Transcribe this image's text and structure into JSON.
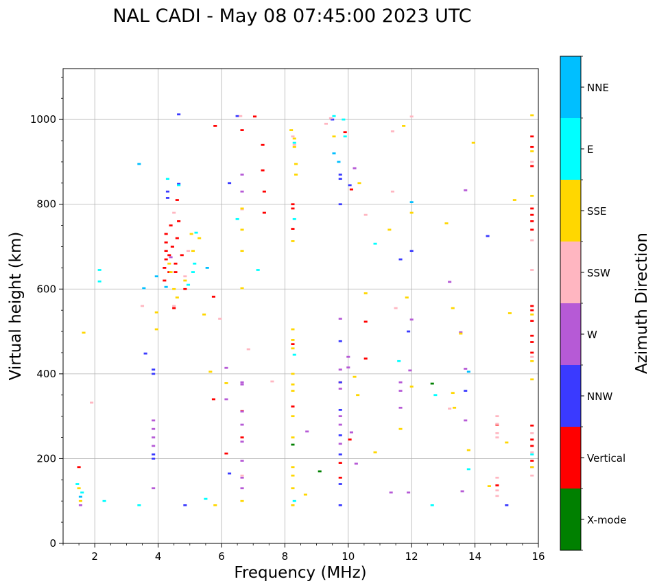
{
  "chart_data": {
    "type": "scatter",
    "title": "NAL CADI - May 08 07:45:00 2023 UTC",
    "xlabel": "Frequency (MHz)",
    "ylabel": "Virtual height (km)",
    "xlim": [
      1,
      16
    ],
    "ylim": [
      0,
      1120
    ],
    "xticks": [
      2,
      4,
      6,
      8,
      10,
      12,
      14,
      16
    ],
    "yticks": [
      0,
      200,
      400,
      600,
      800,
      1000
    ],
    "xtick_labels": [
      "2",
      "4",
      "6",
      "8",
      "10",
      "12",
      "14",
      "16"
    ],
    "ytick_labels": [
      "0",
      "200",
      "400",
      "600",
      "800",
      "1000"
    ],
    "grid": true,
    "colorbar": {
      "label": "Azimuth Direction",
      "categories": [
        {
          "name": "X-mode",
          "color": "#008000"
        },
        {
          "name": "Vertical",
          "color": "#ff0000"
        },
        {
          "name": "NNW",
          "color": "#3a3aff"
        },
        {
          "name": "W",
          "color": "#b65ad6"
        },
        {
          "name": "SSW",
          "color": "#ffb6c1"
        },
        {
          "name": "SSE",
          "color": "#ffd700"
        },
        {
          "name": "E",
          "color": "#00ffff"
        },
        {
          "name": "NNE",
          "color": "#00bfff"
        }
      ]
    },
    "series": [
      {
        "name": "X-mode",
        "points": [
          [
            9.1,
            170
          ],
          [
            12.65,
            377
          ],
          [
            8.25,
            233
          ]
        ]
      },
      {
        "name": "Vertical",
        "points": [
          [
            1.5,
            180
          ],
          [
            4.2,
            620
          ],
          [
            4.2,
            650
          ],
          [
            4.25,
            670
          ],
          [
            4.25,
            690
          ],
          [
            4.25,
            710
          ],
          [
            4.25,
            730
          ],
          [
            4.35,
            640
          ],
          [
            4.35,
            680
          ],
          [
            4.45,
            700
          ],
          [
            4.4,
            750
          ],
          [
            4.5,
            555
          ],
          [
            4.55,
            640
          ],
          [
            4.55,
            660
          ],
          [
            4.6,
            720
          ],
          [
            4.6,
            810
          ],
          [
            4.65,
            760
          ],
          [
            4.75,
            680
          ],
          [
            4.85,
            600
          ],
          [
            5.75,
            582
          ],
          [
            5.75,
            340
          ],
          [
            5.8,
            985
          ],
          [
            6.15,
            212
          ],
          [
            6.65,
            975
          ],
          [
            6.65,
            312
          ],
          [
            6.65,
            250
          ],
          [
            7.05,
            1007
          ],
          [
            7.3,
            940
          ],
          [
            7.3,
            880
          ],
          [
            7.35,
            830
          ],
          [
            7.35,
            780
          ],
          [
            8.25,
            800
          ],
          [
            8.25,
            790
          ],
          [
            8.25,
            742
          ],
          [
            8.25,
            470
          ],
          [
            8.25,
            323
          ],
          [
            9.75,
            380
          ],
          [
            9.75,
            190
          ],
          [
            9.75,
            155
          ],
          [
            9.9,
            970
          ],
          [
            10.05,
            245
          ],
          [
            10.1,
            835
          ],
          [
            10.55,
            523
          ],
          [
            10.55,
            436
          ],
          [
            14.7,
            280
          ],
          [
            14.7,
            137
          ],
          [
            15.8,
            960
          ],
          [
            15.8,
            935
          ],
          [
            15.8,
            890
          ],
          [
            15.8,
            790
          ],
          [
            15.8,
            775
          ],
          [
            15.8,
            760
          ],
          [
            15.8,
            740
          ],
          [
            15.8,
            560
          ],
          [
            15.8,
            550
          ],
          [
            15.8,
            525
          ],
          [
            15.8,
            490
          ],
          [
            15.8,
            475
          ],
          [
            15.8,
            450
          ],
          [
            15.8,
            278
          ],
          [
            15.8,
            245
          ],
          [
            15.8,
            230
          ],
          [
            15.8,
            195
          ]
        ]
      },
      {
        "name": "NNW",
        "points": [
          [
            3.85,
            410
          ],
          [
            3.85,
            400
          ],
          [
            3.85,
            200
          ],
          [
            3.85,
            210
          ],
          [
            3.6,
            448
          ],
          [
            4.3,
            830
          ],
          [
            4.3,
            815
          ],
          [
            4.65,
            1012
          ],
          [
            4.65,
            848
          ],
          [
            4.85,
            90
          ],
          [
            6.25,
            850
          ],
          [
            6.25,
            165
          ],
          [
            6.5,
            1008
          ],
          [
            9.5,
            1000
          ],
          [
            9.75,
            870
          ],
          [
            9.75,
            860
          ],
          [
            9.75,
            800
          ],
          [
            9.75,
            477
          ],
          [
            9.75,
            380
          ],
          [
            9.75,
            315
          ],
          [
            9.75,
            255
          ],
          [
            9.75,
            210
          ],
          [
            9.75,
            140
          ],
          [
            9.75,
            90
          ],
          [
            10.05,
            845
          ],
          [
            11.65,
            670
          ],
          [
            11.9,
            500
          ],
          [
            12,
            690
          ],
          [
            13.7,
            360
          ],
          [
            14.4,
            725
          ],
          [
            15.0,
            90
          ]
        ]
      },
      {
        "name": "W",
        "points": [
          [
            1.55,
            90
          ],
          [
            3.85,
            290
          ],
          [
            3.85,
            270
          ],
          [
            3.85,
            250
          ],
          [
            3.85,
            230
          ],
          [
            3.85,
            130
          ],
          [
            4.4,
            675
          ],
          [
            6.15,
            414
          ],
          [
            6.15,
            340
          ],
          [
            6.65,
            870
          ],
          [
            6.65,
            830
          ],
          [
            6.65,
            380
          ],
          [
            6.65,
            375
          ],
          [
            6.65,
            311
          ],
          [
            6.65,
            280
          ],
          [
            6.65,
            240
          ],
          [
            6.65,
            195
          ],
          [
            6.65,
            155
          ],
          [
            6.65,
            130
          ],
          [
            8.7,
            264
          ],
          [
            9.75,
            530
          ],
          [
            9.75,
            410
          ],
          [
            9.75,
            365
          ],
          [
            9.75,
            300
          ],
          [
            9.75,
            280
          ],
          [
            9.75,
            235
          ],
          [
            10.0,
            440
          ],
          [
            10.0,
            415
          ],
          [
            10.1,
            262
          ],
          [
            10.2,
            885
          ],
          [
            10.25,
            188
          ],
          [
            11.35,
            120
          ],
          [
            11.65,
            380
          ],
          [
            11.65,
            360
          ],
          [
            11.65,
            320
          ],
          [
            11.9,
            120
          ],
          [
            11.95,
            408
          ],
          [
            12.0,
            528
          ],
          [
            13.2,
            617
          ],
          [
            13.55,
            498
          ],
          [
            13.7,
            833
          ],
          [
            13.7,
            412
          ],
          [
            13.7,
            290
          ],
          [
            13.6,
            123
          ],
          [
            15.8,
            180
          ]
        ]
      },
      {
        "name": "SSW",
        "points": [
          [
            1.9,
            332
          ],
          [
            3.5,
            560
          ],
          [
            4.5,
            780
          ],
          [
            4.5,
            560
          ],
          [
            4.85,
            630
          ],
          [
            4.95,
            690
          ],
          [
            5.95,
            530
          ],
          [
            6.6,
            1008
          ],
          [
            6.65,
            788
          ],
          [
            6.65,
            160
          ],
          [
            6.85,
            458
          ],
          [
            7.6,
            382
          ],
          [
            8.25,
            960
          ],
          [
            8.3,
            940
          ],
          [
            9.3,
            990
          ],
          [
            9.45,
            1003
          ],
          [
            10.55,
            775
          ],
          [
            11.4,
            830
          ],
          [
            11.4,
            972
          ],
          [
            11.5,
            555
          ],
          [
            12.0,
            1007
          ],
          [
            13.2,
            318
          ],
          [
            14.7,
            300
          ],
          [
            14.7,
            282
          ],
          [
            14.7,
            260
          ],
          [
            14.7,
            250
          ],
          [
            14.7,
            155
          ],
          [
            14.7,
            125
          ],
          [
            14.7,
            112
          ],
          [
            15.8,
            900
          ],
          [
            15.8,
            715
          ],
          [
            15.8,
            645
          ],
          [
            15.8,
            440
          ],
          [
            15.8,
            260
          ],
          [
            15.8,
            215
          ],
          [
            15.8,
            160
          ]
        ]
      },
      {
        "name": "SSE",
        "points": [
          [
            1.5,
            130
          ],
          [
            1.55,
            100
          ],
          [
            1.65,
            497
          ],
          [
            3.95,
            505
          ],
          [
            3.95,
            545
          ],
          [
            4.35,
            660
          ],
          [
            4.4,
            640
          ],
          [
            4.5,
            600
          ],
          [
            4.6,
            580
          ],
          [
            4.85,
            620
          ],
          [
            5.05,
            730
          ],
          [
            5.1,
            690
          ],
          [
            5.3,
            720
          ],
          [
            5.45,
            540
          ],
          [
            5.65,
            405
          ],
          [
            5.8,
            90
          ],
          [
            6.15,
            378
          ],
          [
            6.65,
            790
          ],
          [
            6.65,
            740
          ],
          [
            6.65,
            690
          ],
          [
            6.65,
            602
          ],
          [
            6.65,
            100
          ],
          [
            8.2,
            975
          ],
          [
            8.3,
            955
          ],
          [
            8.3,
            935
          ],
          [
            8.35,
            895
          ],
          [
            8.35,
            870
          ],
          [
            8.25,
            713
          ],
          [
            8.25,
            505
          ],
          [
            8.25,
            480
          ],
          [
            8.25,
            460
          ],
          [
            8.25,
            400
          ],
          [
            8.25,
            375
          ],
          [
            8.25,
            360
          ],
          [
            8.25,
            300
          ],
          [
            8.25,
            250
          ],
          [
            8.25,
            180
          ],
          [
            8.25,
            160
          ],
          [
            8.25,
            130
          ],
          [
            8.25,
            90
          ],
          [
            8.65,
            115
          ],
          [
            9.55,
            960
          ],
          [
            10.2,
            393
          ],
          [
            10.3,
            350
          ],
          [
            10.35,
            850
          ],
          [
            10.55,
            590
          ],
          [
            10.85,
            215
          ],
          [
            11.3,
            740
          ],
          [
            11.65,
            270
          ],
          [
            11.75,
            985
          ],
          [
            11.85,
            580
          ],
          [
            12.0,
            780
          ],
          [
            12.0,
            370
          ],
          [
            13.1,
            755
          ],
          [
            13.3,
            555
          ],
          [
            13.3,
            355
          ],
          [
            13.35,
            320
          ],
          [
            13.55,
            495
          ],
          [
            13.95,
            945
          ],
          [
            13.8,
            220
          ],
          [
            14.45,
            135
          ],
          [
            15.0,
            238
          ],
          [
            15.1,
            543
          ],
          [
            15.25,
            810
          ],
          [
            15.8,
            1010
          ],
          [
            15.8,
            925
          ],
          [
            15.8,
            820
          ],
          [
            15.8,
            540
          ],
          [
            15.8,
            430
          ],
          [
            15.8,
            387
          ],
          [
            15.8,
            180
          ]
        ]
      },
      {
        "name": "E",
        "points": [
          [
            1.45,
            140
          ],
          [
            1.6,
            120
          ],
          [
            2.15,
            645
          ],
          [
            2.15,
            618
          ],
          [
            2.3,
            100
          ],
          [
            3.4,
            90
          ],
          [
            4.3,
            860
          ],
          [
            4.65,
            845
          ],
          [
            4.95,
            610
          ],
          [
            5.15,
            660
          ],
          [
            5.1,
            640
          ],
          [
            5.2,
            733
          ],
          [
            5.5,
            105
          ],
          [
            6.5,
            765
          ],
          [
            7.15,
            645
          ],
          [
            8.3,
            945
          ],
          [
            8.3,
            765
          ],
          [
            8.3,
            445
          ],
          [
            8.3,
            100
          ],
          [
            9.55,
            1008
          ],
          [
            9.85,
            1000
          ],
          [
            9.9,
            960
          ],
          [
            10.85,
            707
          ],
          [
            11.6,
            430
          ],
          [
            12.65,
            90
          ],
          [
            12.75,
            350
          ],
          [
            13.8,
            175
          ],
          [
            15.8,
            210
          ]
        ]
      },
      {
        "name": "NNE",
        "points": [
          [
            1.55,
            110
          ],
          [
            3.4,
            895
          ],
          [
            3.55,
            602
          ],
          [
            3.95,
            630
          ],
          [
            4.25,
            605
          ],
          [
            5.55,
            650
          ],
          [
            9.55,
            920
          ],
          [
            9.7,
            900
          ],
          [
            12.0,
            805
          ],
          [
            13.8,
            405
          ]
        ]
      }
    ]
  }
}
